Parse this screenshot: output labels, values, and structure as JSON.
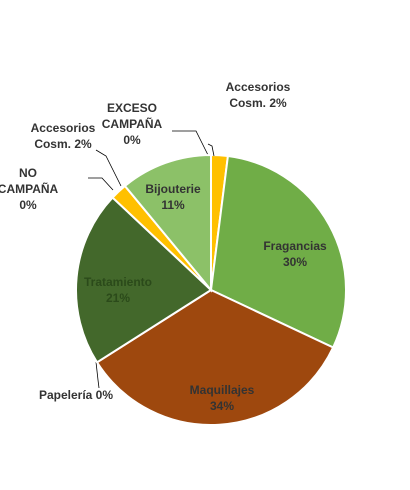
{
  "chart_data": {
    "type": "pie",
    "title": "",
    "slices": [
      {
        "label": "Accesorios Cosm.",
        "value": 2,
        "color": "#FFC000"
      },
      {
        "label": "Fragancias",
        "value": 30,
        "color": "#70AD47"
      },
      {
        "label": "Maquillajes",
        "value": 34,
        "color": "#9E480E"
      },
      {
        "label": "Papelería",
        "value": 0,
        "color": "#636363"
      },
      {
        "label": "Tratamiento",
        "value": 21,
        "color": "#43682B"
      },
      {
        "label": "NO CAMPAÑA",
        "value": 0,
        "color": "#997300"
      },
      {
        "label": "Accesorios Cosm.",
        "value": 2,
        "color": "#FFC000"
      },
      {
        "label": "EXCESO CAMPAÑA",
        "value": 0,
        "color": "#264478"
      },
      {
        "label": "Bijouterie",
        "value": 11,
        "color": "#8CC168"
      }
    ],
    "data_labels": [
      [
        "Accesorios",
        "Cosm. 2%"
      ],
      [
        "Fragancias",
        "30%"
      ],
      [
        "Maquillajes",
        "34%"
      ],
      [
        "Papelería 0%"
      ],
      [
        "Tratamiento",
        "21%"
      ],
      [
        "NO",
        "CAMPAÑA",
        "0%"
      ],
      [
        "Accesorios",
        "Cosm. 2%"
      ],
      [
        "EXCESO",
        "CAMPAÑA",
        "0%"
      ],
      [
        "Bijouterie",
        "11%"
      ]
    ]
  }
}
